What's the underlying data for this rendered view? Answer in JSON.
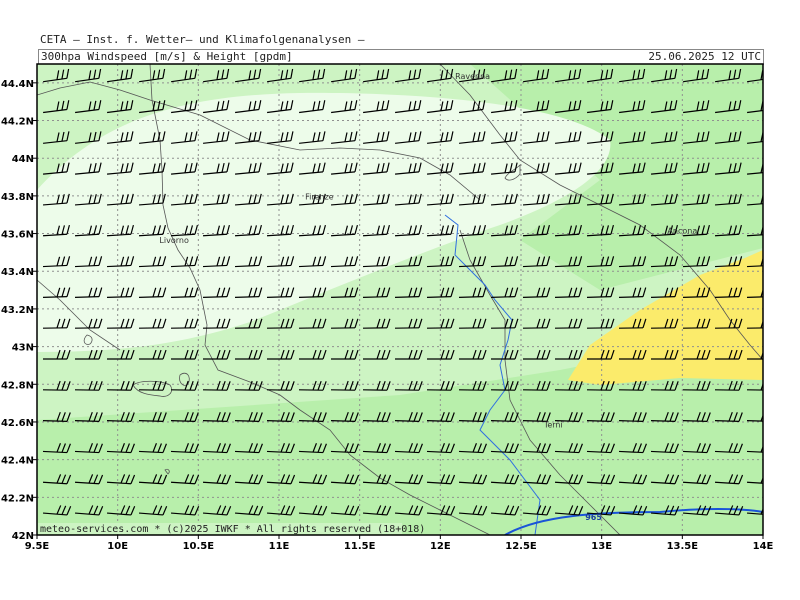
{
  "header": {
    "line1": "CETA — Inst. f. Wetter— und Klimafolgenanalysen —",
    "line2": "300hpa Windspeed [m/s] & Height [gpdm]",
    "valid": "25.06.2025 12 UTC"
  },
  "footer": "meteo-services.com * (c)2025 IWKF * All rights reserved (18+018)",
  "map_extent": {
    "lon": [
      9.5,
      14.0
    ],
    "lat": [
      42.0,
      44.5
    ]
  },
  "colors": {
    "lightest": "#edfcea",
    "light": "#cdf4c3",
    "mid": "#b8efab",
    "yellow": "#fbeb6b",
    "contour": "#1a54d8",
    "river": "#2f6fe0",
    "border": "#555555"
  },
  "lon_labels": [
    "9.5E",
    "10E",
    "10.5E",
    "11E",
    "11.5E",
    "12E",
    "12.5E",
    "13E",
    "13.5E",
    "14E"
  ],
  "lat_labels": [
    "42N",
    "42.2N",
    "42.4N",
    "42.6N",
    "42.8N",
    "43N",
    "43.2N",
    "43.4N",
    "43.6N",
    "43.8N",
    "44N",
    "44.2N",
    "44.4N"
  ],
  "cities": [
    {
      "name": "Ravenna",
      "lon": 12.2,
      "lat": 44.42
    },
    {
      "name": "Firenze",
      "lon": 11.25,
      "lat": 43.78
    },
    {
      "name": "Livorno",
      "lon": 10.35,
      "lat": 43.55
    },
    {
      "name": "Ancona",
      "lon": 13.5,
      "lat": 43.6
    },
    {
      "name": "Terni",
      "lon": 12.7,
      "lat": 42.57
    }
  ],
  "height_contours": [
    {
      "label": "965",
      "label_lon": 12.95,
      "label_lat": 42.08
    }
  ],
  "wind_field": {
    "direction": "westerly",
    "barb_units": "m/s",
    "speed_range": [
      15,
      30
    ]
  }
}
